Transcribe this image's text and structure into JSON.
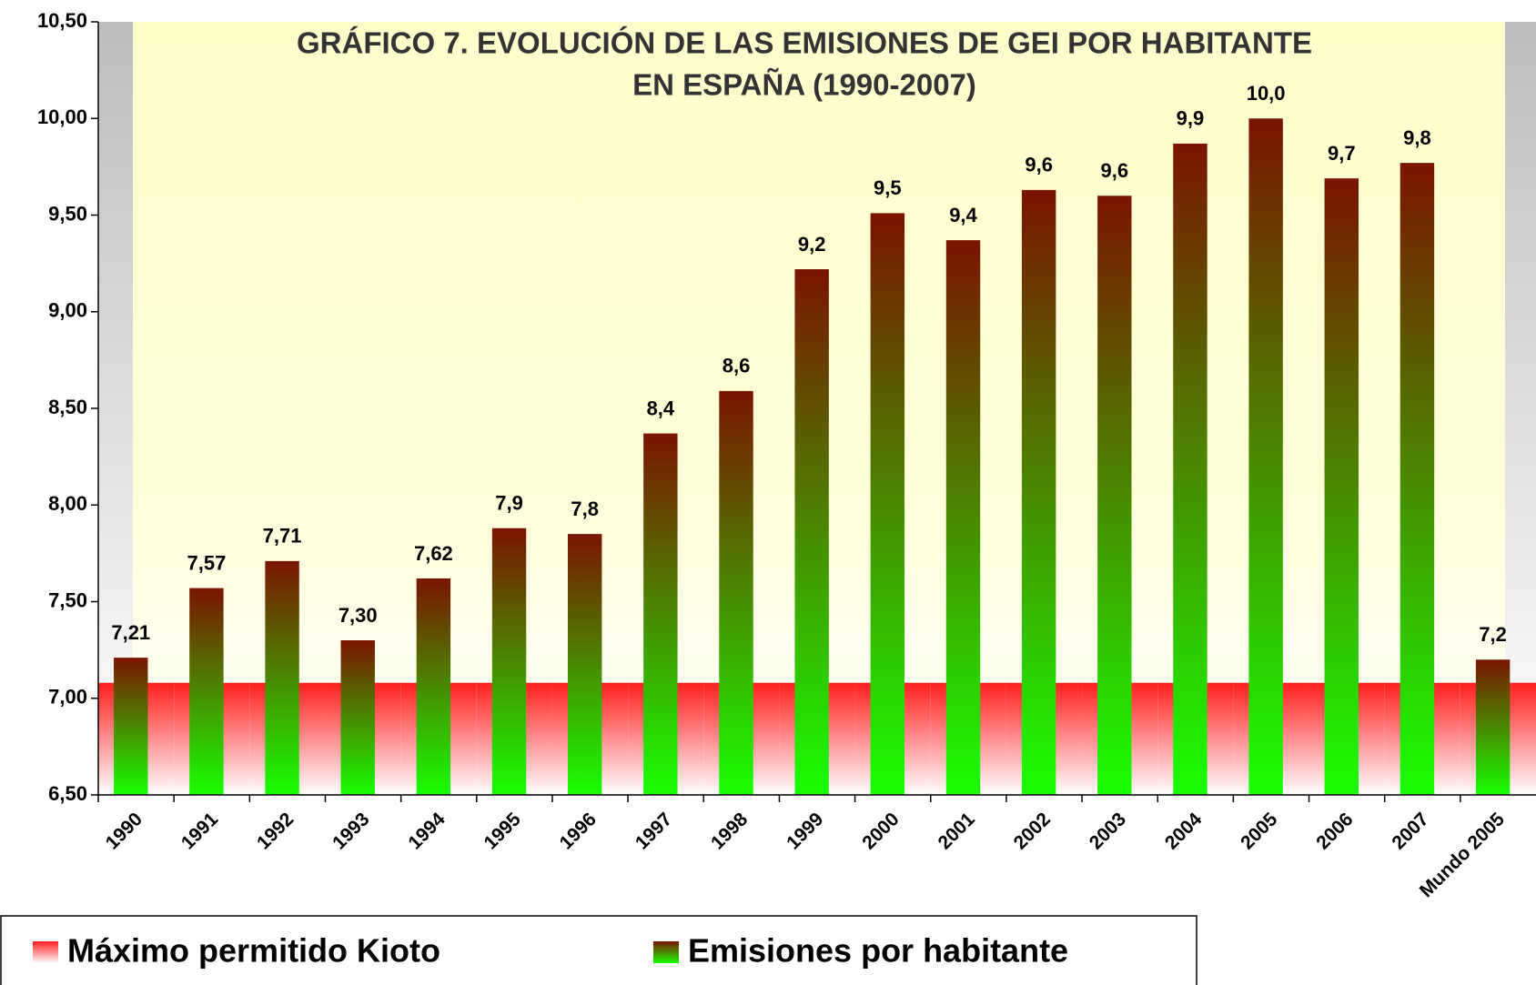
{
  "chart_data": {
    "type": "bar",
    "title": [
      "GRÁFICO 7. EVOLUCIÓN DE LAS EMISIONES DE GEI POR HABITANTE",
      "EN ESPAÑA (1990-2007)"
    ],
    "categories": [
      "1990",
      "1991",
      "1992",
      "1993",
      "1994",
      "1995",
      "1996",
      "1997",
      "1998",
      "1999",
      "2000",
      "2001",
      "2002",
      "2003",
      "2004",
      "2005",
      "2006",
      "2007",
      "Mundo 2005"
    ],
    "series": [
      {
        "name": "Máximo permitido Kioto",
        "color": "#ff2020",
        "gradient": [
          "#ff2020",
          "#ffffff"
        ],
        "values": [
          7.08,
          7.08,
          7.08,
          7.08,
          7.08,
          7.08,
          7.08,
          7.08,
          7.08,
          7.08,
          7.08,
          7.08,
          7.08,
          7.08,
          7.08,
          7.08,
          7.08,
          7.08,
          7.08
        ]
      },
      {
        "name": "Emisiones por habitante",
        "color": "#22ee00",
        "gradient": [
          "#7a1400",
          "#18ff00"
        ],
        "values": [
          7.21,
          7.57,
          7.71,
          7.3,
          7.62,
          7.88,
          7.85,
          8.37,
          8.59,
          9.22,
          9.51,
          9.37,
          9.63,
          9.6,
          9.87,
          10.0,
          9.69,
          9.77,
          7.2
        ],
        "value_labels": [
          "7,21",
          "7,57",
          "7,71",
          "7,30",
          "7,62",
          "7,9",
          "7,8",
          "8,4",
          "8,6",
          "9,2",
          "9,5",
          "9,4",
          "9,6",
          "9,6",
          "9,9",
          "10,0",
          "9,7",
          "9,8",
          "7,2"
        ]
      }
    ],
    "ylim": [
      6.5,
      10.5
    ],
    "yticks": [
      {
        "value": 6.5,
        "label": "6,50"
      },
      {
        "value": 7,
        "label": "7,00"
      },
      {
        "value": 7.5,
        "label": "7,50"
      },
      {
        "value": 8,
        "label": "8,00"
      },
      {
        "value": 8.5,
        "label": "8,50"
      },
      {
        "value": 9,
        "label": "9,00"
      },
      {
        "value": 9.5,
        "label": "9,50"
      },
      {
        "value": 10,
        "label": "10,00"
      },
      {
        "value": 10.5,
        "label": "10,50"
      }
    ],
    "legend": "bottom"
  }
}
